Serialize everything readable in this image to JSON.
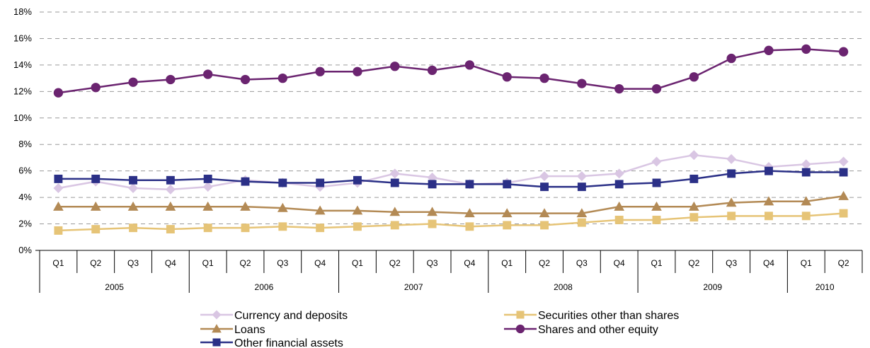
{
  "chart_data": {
    "type": "line",
    "title": "",
    "xlabel": "",
    "ylabel": "",
    "ylim": [
      0,
      18
    ],
    "y_ticks": [
      "0%",
      "2%",
      "4%",
      "6%",
      "8%",
      "10%",
      "12%",
      "14%",
      "16%",
      "18%"
    ],
    "grid": "horizontal dashed",
    "legend_position": "bottom",
    "categories": [
      "Q1",
      "Q2",
      "Q3",
      "Q4",
      "Q1",
      "Q2",
      "Q3",
      "Q4",
      "Q1",
      "Q2",
      "Q3",
      "Q4",
      "Q1",
      "Q2",
      "Q3",
      "Q4",
      "Q1",
      "Q2",
      "Q3",
      "Q4",
      "Q1",
      "Q2"
    ],
    "years": [
      {
        "label": "2005",
        "count": 4
      },
      {
        "label": "2006",
        "count": 4
      },
      {
        "label": "2007",
        "count": 4
      },
      {
        "label": "2008",
        "count": 4
      },
      {
        "label": "2009",
        "count": 4
      },
      {
        "label": "2010",
        "count": 2
      }
    ],
    "series": [
      {
        "name": "Currency and deposits",
        "color": "#d9c6e3",
        "marker": "diamond",
        "values": [
          4.7,
          5.2,
          4.7,
          4.6,
          4.8,
          5.3,
          5.1,
          4.8,
          5.1,
          5.8,
          5.5,
          5.0,
          5.1,
          5.6,
          5.6,
          5.8,
          6.7,
          7.2,
          6.9,
          6.3,
          6.5,
          6.7
        ]
      },
      {
        "name": "Securities other than shares",
        "color": "#e6c477",
        "marker": "square",
        "values": [
          1.5,
          1.6,
          1.7,
          1.6,
          1.7,
          1.7,
          1.8,
          1.7,
          1.8,
          1.9,
          2.0,
          1.8,
          1.9,
          1.9,
          2.1,
          2.3,
          2.3,
          2.5,
          2.6,
          2.6,
          2.6,
          2.8
        ]
      },
      {
        "name": "Loans",
        "color": "#b38a55",
        "marker": "triangle",
        "values": [
          3.3,
          3.3,
          3.3,
          3.3,
          3.3,
          3.3,
          3.2,
          3.0,
          3.0,
          2.9,
          2.9,
          2.8,
          2.8,
          2.8,
          2.8,
          3.3,
          3.3,
          3.3,
          3.6,
          3.7,
          3.7,
          4.1
        ]
      },
      {
        "name": "Shares and other equity",
        "color": "#6b2470",
        "marker": "circle",
        "values": [
          11.9,
          12.3,
          12.7,
          12.9,
          13.3,
          12.9,
          13.0,
          13.5,
          13.5,
          13.9,
          13.6,
          14.0,
          13.1,
          13.0,
          12.6,
          12.2,
          12.2,
          13.1,
          14.5,
          15.1,
          15.2,
          15.0
        ]
      },
      {
        "name": "Other financial assets",
        "color": "#2b3087",
        "marker": "square",
        "values": [
          5.4,
          5.4,
          5.3,
          5.3,
          5.4,
          5.2,
          5.1,
          5.1,
          5.3,
          5.1,
          5.0,
          5.0,
          5.0,
          4.8,
          4.8,
          5.0,
          5.1,
          5.4,
          5.8,
          6.0,
          5.9,
          5.9
        ]
      }
    ]
  }
}
